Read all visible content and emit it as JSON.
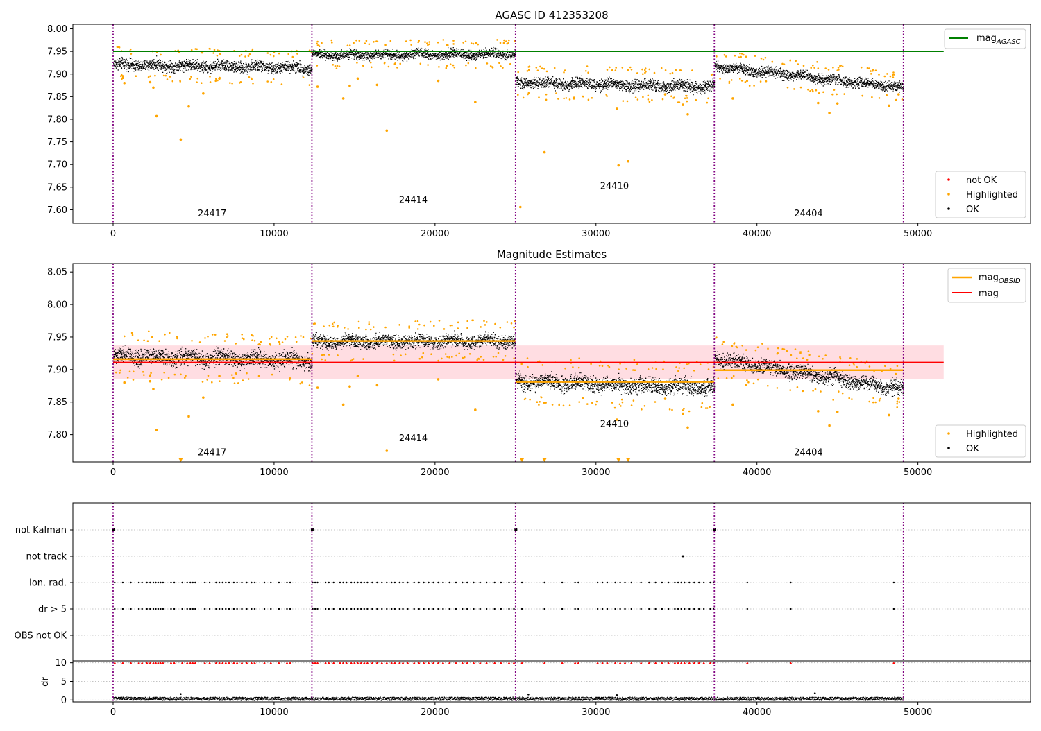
{
  "chart_data": [
    {
      "type": "scatter",
      "title": "AGASC ID 412353208",
      "xlim": [
        -2500,
        57000
      ],
      "ylim": [
        7.57,
        8.01
      ],
      "xticks": [
        "0",
        "10000",
        "20000",
        "30000",
        "40000",
        "50000"
      ],
      "yticks": [
        "7.60",
        "7.65",
        "7.70",
        "7.75",
        "7.80",
        "7.85",
        "7.90",
        "7.95",
        "8.00"
      ],
      "colors": {
        "ok": "#000000",
        "highlighted": "#ffa500",
        "not_ok": "#ff0000",
        "mag_agasc": "#008000",
        "obs_boundary": "#800080"
      },
      "obs_boundaries": [
        0,
        12350,
        25000,
        37350,
        49100
      ],
      "obs_labels": [
        {
          "text": "24417",
          "x": 6150,
          "y": 7.585
        },
        {
          "text": "24414",
          "x": 18650,
          "y": 7.615
        },
        {
          "text": "24410",
          "x": 31150,
          "y": 7.646
        },
        {
          "text": "24404",
          "x": 43200,
          "y": 7.585
        }
      ],
      "series_ok_bands": [
        {
          "x0": 0,
          "x1": 12350,
          "y0": 7.922,
          "y1": 7.914,
          "spread": 0.011
        },
        {
          "x0": 12350,
          "x1": 25000,
          "y0": 7.943,
          "y1": 7.945,
          "spread": 0.009
        },
        {
          "x0": 25000,
          "x1": 37350,
          "y0": 7.882,
          "y1": 7.873,
          "spread": 0.011
        },
        {
          "x0": 37350,
          "x1": 49100,
          "y0": 7.918,
          "y1": 7.87,
          "spread": 0.01
        }
      ],
      "mag_agasc": {
        "value": 7.95,
        "x0": 0,
        "x1": 51600
      },
      "highlighted_points": [
        [
          2700,
          7.807
        ],
        [
          4200,
          7.755
        ],
        [
          4700,
          7.828
        ],
        [
          5600,
          7.857
        ],
        [
          2500,
          7.87
        ],
        [
          2300,
          7.882
        ],
        [
          700,
          7.88
        ],
        [
          6600,
          7.89
        ],
        [
          12700,
          7.872
        ],
        [
          14300,
          7.846
        ],
        [
          15200,
          7.89
        ],
        [
          16400,
          7.876
        ],
        [
          17000,
          7.775
        ],
        [
          20200,
          7.885
        ],
        [
          22500,
          7.838
        ],
        [
          14700,
          7.874
        ],
        [
          25300,
          7.606
        ],
        [
          26800,
          7.727
        ],
        [
          31400,
          7.698
        ],
        [
          32000,
          7.707
        ],
        [
          31300,
          7.823
        ],
        [
          35400,
          7.832
        ],
        [
          35700,
          7.811
        ],
        [
          34300,
          7.855
        ],
        [
          38500,
          7.846
        ],
        [
          43800,
          7.836
        ],
        [
          44500,
          7.814
        ],
        [
          45000,
          7.835
        ],
        [
          48200,
          7.83
        ],
        [
          48800,
          7.855
        ]
      ],
      "legend": {
        "top_right": {
          "mag_agasc_base": "mag",
          "mag_agasc_sub": "AGASC"
        },
        "bottom_right": {
          "not_ok": "not OK",
          "highlighted": "Highlighted",
          "ok": "OK"
        }
      }
    },
    {
      "type": "scatter",
      "title": "Magnitude Estimates",
      "xlim": [
        -2500,
        57000
      ],
      "ylim": [
        7.758,
        8.063
      ],
      "xticks": [
        "0",
        "10000",
        "20000",
        "30000",
        "40000",
        "50000"
      ],
      "yticks": [
        "7.80",
        "7.85",
        "7.90",
        "7.95",
        "8.00",
        "8.05"
      ],
      "colors": {
        "ok": "#000000",
        "highlighted": "#ffa500",
        "mag_obsid": "#ffa500",
        "mag": "#ff0000",
        "band": "#ffdde2"
      },
      "obs_boundaries": [
        0,
        12350,
        25000,
        37350,
        49100
      ],
      "obs_labels": [
        {
          "text": "24417",
          "x": 6150,
          "y": 7.768
        },
        {
          "text": "24414",
          "x": 18650,
          "y": 7.79
        },
        {
          "text": "24410",
          "x": 31150,
          "y": 7.812
        },
        {
          "text": "24404",
          "x": 43200,
          "y": 7.768
        }
      ],
      "series_ok_bands": [
        {
          "x0": 0,
          "x1": 12350,
          "y0": 7.922,
          "y1": 7.914,
          "spread": 0.011
        },
        {
          "x0": 12350,
          "x1": 25000,
          "y0": 7.943,
          "y1": 7.945,
          "spread": 0.009
        },
        {
          "x0": 25000,
          "x1": 37350,
          "y0": 7.882,
          "y1": 7.873,
          "spread": 0.011
        },
        {
          "x0": 37350,
          "x1": 49100,
          "y0": 7.918,
          "y1": 7.87,
          "spread": 0.01
        }
      ],
      "mag_obsid": [
        {
          "x0": 0,
          "x1": 12350,
          "value": 7.916
        },
        {
          "x0": 12350,
          "x1": 25000,
          "value": 7.944
        },
        {
          "x0": 25000,
          "x1": 37350,
          "value": 7.881
        },
        {
          "x0": 37350,
          "x1": 49100,
          "value": 7.899
        }
      ],
      "mag": {
        "value": 7.911,
        "low": 7.885,
        "high": 7.937,
        "x0": 0,
        "x1": 51600
      },
      "highlighted_points": [
        [
          2700,
          7.807
        ],
        [
          4700,
          7.828
        ],
        [
          5600,
          7.857
        ],
        [
          2500,
          7.87
        ],
        [
          2300,
          7.882
        ],
        [
          700,
          7.88
        ],
        [
          6600,
          7.89
        ],
        [
          12700,
          7.872
        ],
        [
          14300,
          7.846
        ],
        [
          15200,
          7.89
        ],
        [
          16400,
          7.876
        ],
        [
          17000,
          7.775
        ],
        [
          20200,
          7.885
        ],
        [
          22500,
          7.838
        ],
        [
          14700,
          7.874
        ],
        [
          31300,
          7.823
        ],
        [
          35400,
          7.832
        ],
        [
          35700,
          7.811
        ],
        [
          34300,
          7.855
        ],
        [
          38500,
          7.846
        ],
        [
          43800,
          7.836
        ],
        [
          44500,
          7.814
        ],
        [
          45000,
          7.835
        ],
        [
          48200,
          7.83
        ],
        [
          48800,
          7.855
        ]
      ],
      "offscale_markers": [
        4200,
        25400,
        26800,
        31400,
        32000
      ],
      "legend": {
        "top_right": {
          "mag_obsid_base": "mag",
          "mag_obsid_sub": "OBSID",
          "mag": "mag"
        },
        "bottom_right": {
          "highlighted": "Highlighted",
          "ok": "OK"
        }
      }
    },
    {
      "type": "scatter",
      "xlim": [
        -2500,
        57000
      ],
      "xticks": [
        "0",
        "10000",
        "20000",
        "30000",
        "40000",
        "50000"
      ],
      "flag_rows": [
        "not Kalman",
        "not track",
        "Ion. rad.",
        "dr > 5",
        "OBS not OK"
      ],
      "dr_yticks": [
        "0",
        "5",
        "10"
      ],
      "dr_ylabel": "dr",
      "dr_ylim": [
        -0.5,
        10.5
      ],
      "obs_boundaries": [
        0,
        12350,
        25000,
        37350,
        49100
      ],
      "not_kalman_x": [
        0,
        12350,
        25000,
        37350
      ],
      "not_track_x": [
        35400
      ],
      "flag_x": [
        100,
        600,
        1100,
        1600,
        1800,
        2100,
        2300,
        2500,
        2650,
        2800,
        2950,
        3100,
        3600,
        3800,
        4300,
        4600,
        4800,
        4950,
        5100,
        5700,
        6000,
        6400,
        6600,
        6800,
        7000,
        7200,
        7500,
        7700,
        8000,
        8300,
        8600,
        8800,
        9400,
        9800,
        10300,
        10800,
        11000,
        12400,
        12550,
        12700,
        13200,
        13400,
        13700,
        14100,
        14300,
        14500,
        14800,
        15000,
        15200,
        15400,
        15600,
        15800,
        16100,
        16400,
        16700,
        17000,
        17300,
        17500,
        17800,
        18000,
        18300,
        18700,
        19000,
        19300,
        19600,
        19900,
        20200,
        20500,
        20900,
        21300,
        21700,
        22000,
        22400,
        22800,
        23200,
        23700,
        24100,
        24600,
        24900,
        25400,
        26800,
        27900,
        28700,
        28900,
        30100,
        30400,
        30700,
        31200,
        31500,
        31800,
        32200,
        32800,
        33300,
        33700,
        34100,
        34500,
        34900,
        35100,
        35300,
        35500,
        35800,
        36100,
        36400,
        36700,
        37100,
        37300,
        39400,
        42100,
        48500
      ],
      "dr_outliers": [
        [
          4200,
          1.6
        ],
        [
          43600,
          1.8
        ],
        [
          25800,
          1.5
        ],
        [
          31300,
          1.3
        ]
      ]
    }
  ]
}
